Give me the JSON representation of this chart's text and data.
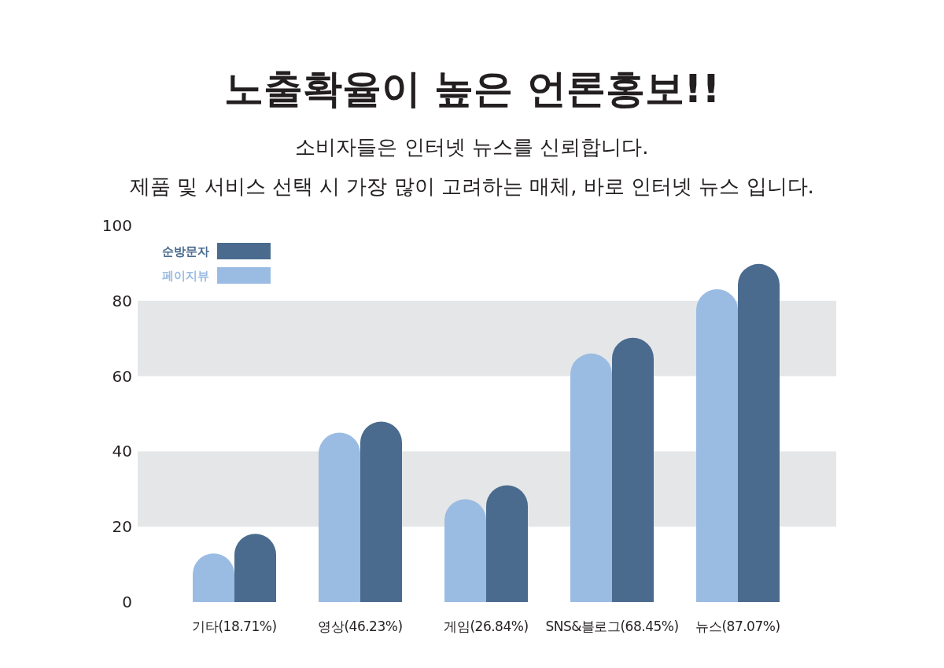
{
  "chart_data": {
    "type": "bar",
    "title": "노출확율이 높은 언론홍보!!",
    "subtitle": "소비자들은 인터넷 뉴스를 신뢰합니다.\n제품 및 서비스 선택 시 가장 많이 고려하는 매체, 바로 인터넷 뉴스 입니다.",
    "categories": [
      "기타(18.71%)",
      "영상(46.23%)",
      "게임(26.84%)",
      "SNS&블로그(68.45%)",
      "뉴스(87.07%)"
    ],
    "series": [
      {
        "name": "페이지뷰",
        "color": "#9bbce2",
        "values": [
          12.9,
          45,
          27.3,
          66,
          83.1
        ]
      },
      {
        "name": "순방문자",
        "color": "#4a6b8e",
        "values": [
          18.1,
          47.9,
          31,
          70.2,
          89.8
        ]
      }
    ],
    "ylim": [
      0,
      100
    ],
    "yticks": [
      0,
      20,
      40,
      60,
      80,
      100
    ],
    "bands": [
      {
        "axis": "y",
        "from": 20,
        "to": 40,
        "color": "#e5e6e8"
      },
      {
        "axis": "y",
        "from": 60,
        "to": 80,
        "color": "#e5e6e8"
      }
    ],
    "legend": "top left"
  }
}
